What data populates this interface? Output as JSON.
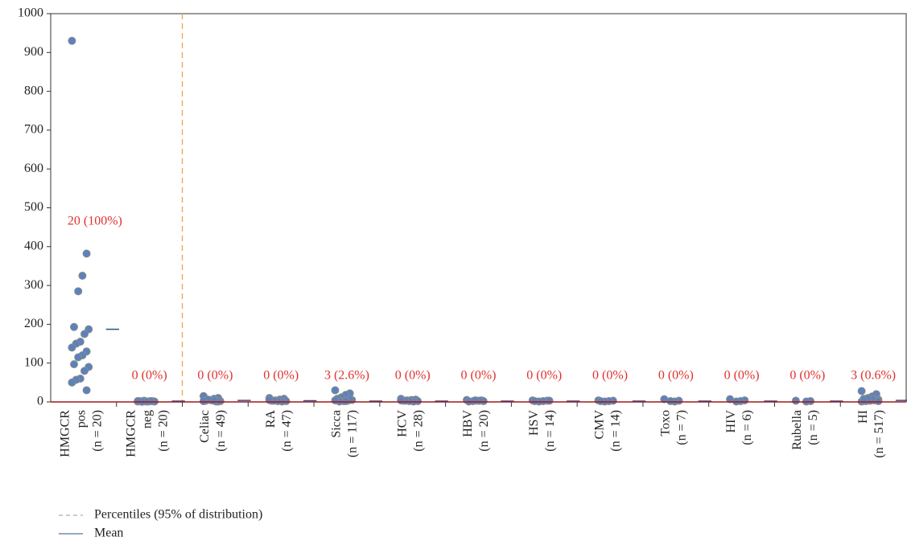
{
  "chart_data": {
    "type": "strip",
    "categories": [
      [
        "HMGCR",
        "pos"
      ],
      [
        "HMGCR",
        "neg"
      ],
      [
        "Celiac"
      ],
      [
        "RA"
      ],
      [
        "Sicca"
      ],
      [
        "HCV"
      ],
      [
        "HBV"
      ],
      [
        "HSV"
      ],
      [
        "CMV"
      ],
      [
        "Toxo"
      ],
      [
        "HIV"
      ],
      [
        "Rubella"
      ],
      [
        "HI"
      ]
    ],
    "n_labels": [
      "(n = 20)",
      "(n = 20)",
      "(n = 49)",
      "(n = 47)",
      "(n = 117)",
      "(n = 28)",
      "(n = 20)",
      "(n = 14)",
      "(n = 14)",
      "(n = 7)",
      "(n = 6)",
      "(n = 5)",
      "(n = 517)"
    ],
    "points": [
      [
        930,
        382,
        325,
        285,
        193,
        187,
        175,
        155,
        150,
        140,
        130,
        120,
        115,
        97,
        90,
        80,
        60,
        57,
        50,
        30
      ],
      [
        1,
        2,
        1,
        3,
        2,
        1,
        2,
        1,
        0.5,
        2
      ],
      [
        15,
        10,
        8,
        5,
        3,
        2,
        1,
        4,
        6,
        2,
        1,
        3
      ],
      [
        10,
        8,
        6,
        4,
        3,
        2,
        1,
        2,
        3,
        5
      ],
      [
        30,
        22,
        18,
        12,
        8,
        5,
        3,
        2,
        1,
        4,
        6,
        2
      ],
      [
        8,
        6,
        5,
        4,
        3,
        2,
        1,
        2,
        3,
        4
      ],
      [
        5,
        4,
        3,
        2,
        1,
        2,
        3,
        4
      ],
      [
        4,
        3,
        2,
        1,
        2,
        3
      ],
      [
        4,
        3,
        2,
        1,
        2
      ],
      [
        7,
        3,
        1,
        2
      ],
      [
        7,
        4,
        2,
        1
      ],
      [
        3,
        2,
        1
      ],
      [
        28,
        20,
        14,
        10,
        8,
        6,
        4,
        3,
        2,
        1,
        5,
        7,
        9,
        3,
        2
      ]
    ],
    "means": [
      187,
      2,
      4,
      3,
      2,
      2,
      2,
      2,
      2,
      2,
      2,
      2,
      4
    ],
    "annotations": [
      "20 (100%)",
      "0 (0%)",
      "0 (0%)",
      "0 (0%)",
      "3 (2.6%)",
      "0 (0%)",
      "0 (0%)",
      "0 (0%)",
      "0 (0%)",
      "0 (0%)",
      "0 (0%)",
      "0 (0%)",
      "3 (0.6%)"
    ],
    "point_color": "#5b82bd",
    "mean_color": "#2b4f8f",
    "annotation_color": "#e0312e",
    "ylim": [
      0,
      1000
    ],
    "yticks": [
      0,
      100,
      200,
      300,
      400,
      500,
      600,
      700,
      800,
      900,
      1000
    ],
    "legend": [
      "Percentiles (95% of distribution)",
      "Mean"
    ]
  }
}
